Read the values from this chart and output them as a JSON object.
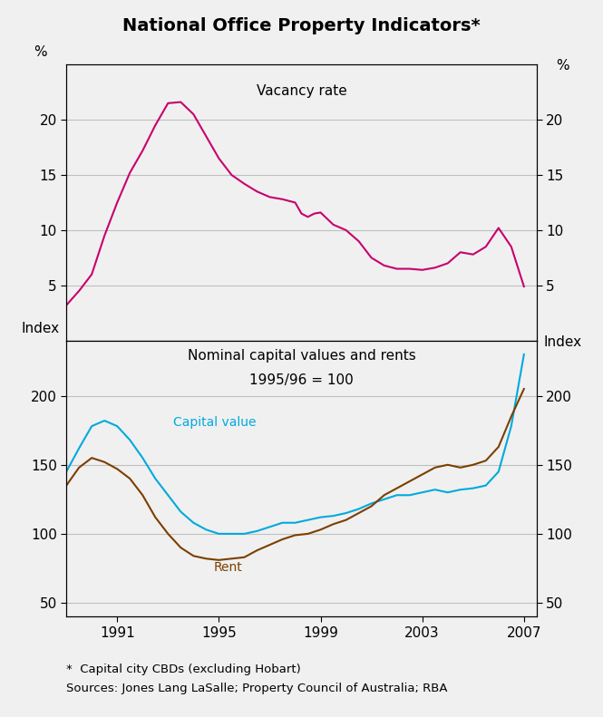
{
  "title": "National Office Property Indicators*",
  "footnote1": "*  Capital city CBDs (excluding Hobart)",
  "footnote2": "Sources: Jones Lang LaSalle; Property Council of Australia; RBA",
  "top_panel": {
    "label": "Vacancy rate",
    "ylabel_left": "%",
    "ylabel_right": "%",
    "ylim": [
      0,
      25
    ],
    "yticks": [
      5,
      10,
      15,
      20
    ],
    "color": "#C8006E",
    "x": [
      1989.0,
      1989.5,
      1990.0,
      1990.5,
      1991.0,
      1991.5,
      1992.0,
      1992.5,
      1993.0,
      1993.5,
      1994.0,
      1994.5,
      1995.0,
      1995.5,
      1996.0,
      1996.5,
      1997.0,
      1997.5,
      1998.0,
      1998.25,
      1998.5,
      1998.75,
      1999.0,
      1999.5,
      2000.0,
      2000.5,
      2001.0,
      2001.5,
      2002.0,
      2002.5,
      2003.0,
      2003.5,
      2004.0,
      2004.5,
      2005.0,
      2005.5,
      2006.0,
      2006.5,
      2007.0
    ],
    "y": [
      3.2,
      4.5,
      6.0,
      9.5,
      12.5,
      15.2,
      17.2,
      19.5,
      21.5,
      21.6,
      20.5,
      18.5,
      16.5,
      15.0,
      14.2,
      13.5,
      13.0,
      12.8,
      12.5,
      11.5,
      11.2,
      11.5,
      11.6,
      10.5,
      10.0,
      9.0,
      7.5,
      6.8,
      6.5,
      6.5,
      6.4,
      6.6,
      7.0,
      8.0,
      7.8,
      8.5,
      10.2,
      8.5,
      4.9
    ]
  },
  "bottom_panel": {
    "label1": "Nominal capital values and rents",
    "label2": "1995/96 = 100",
    "ylabel_left": "Index",
    "ylabel_right": "Index",
    "ylim": [
      40,
      240
    ],
    "yticks": [
      50,
      100,
      150,
      200
    ],
    "capital_color": "#00AADD",
    "rent_color": "#7B3F00",
    "capital_label": "Capital value",
    "rent_label": "Rent",
    "x": [
      1989.0,
      1989.5,
      1990.0,
      1990.5,
      1991.0,
      1991.5,
      1992.0,
      1992.5,
      1993.0,
      1993.5,
      1994.0,
      1994.5,
      1995.0,
      1995.5,
      1996.0,
      1996.5,
      1997.0,
      1997.5,
      1998.0,
      1998.5,
      1999.0,
      1999.5,
      2000.0,
      2000.5,
      2001.0,
      2001.5,
      2002.0,
      2002.5,
      2003.0,
      2003.5,
      2004.0,
      2004.5,
      2005.0,
      2005.5,
      2006.0,
      2006.5,
      2007.0
    ],
    "capital_y": [
      145,
      162,
      178,
      182,
      178,
      168,
      155,
      140,
      128,
      116,
      108,
      103,
      100,
      100,
      100,
      102,
      105,
      108,
      108,
      110,
      112,
      113,
      115,
      118,
      122,
      125,
      128,
      128,
      130,
      132,
      130,
      132,
      133,
      135,
      145,
      178,
      230
    ],
    "rent_y": [
      135,
      148,
      155,
      152,
      147,
      140,
      128,
      112,
      100,
      90,
      84,
      82,
      81,
      82,
      83,
      88,
      92,
      96,
      99,
      100,
      103,
      107,
      110,
      115,
      120,
      128,
      133,
      138,
      143,
      148,
      150,
      148,
      150,
      153,
      163,
      185,
      205
    ]
  },
  "xlim": [
    1989,
    2007.5
  ],
  "xticks": [
    1991,
    1995,
    1999,
    2003,
    2007
  ],
  "background_color": "#f0f0f0",
  "grid_color": "#c0c0c0"
}
